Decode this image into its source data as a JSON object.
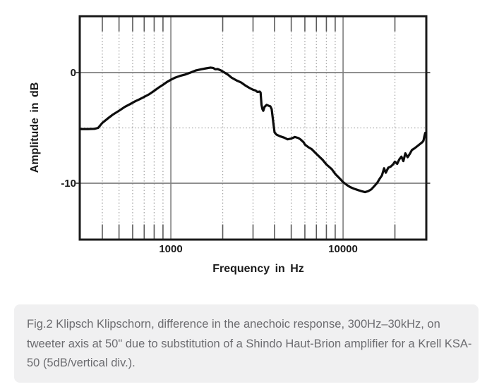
{
  "figure": {
    "y_axis_title": "Amplitude in dB",
    "x_axis_title": "Frequency in Hz",
    "y_tick_labels": [
      "0",
      "-10"
    ],
    "x_tick_labels": [
      "1000",
      "10000"
    ]
  },
  "caption": {
    "lines": [
      "Fig.2 Klipsch Klipschorn, difference in the anechoic response, 300Hz–30kHz, on",
      "tweeter axis at 50\" due to substitution of a Shindo Haut-Brion amplifier for a Krell KSA-",
      "50 (5dB/vertical div.)."
    ],
    "background": "#f0f0f1",
    "text_color": "#6c6c70"
  },
  "chart_data": {
    "type": "line",
    "title": "",
    "xlabel": "Frequency in Hz",
    "ylabel": "Amplitude in dB",
    "x_scale": "log",
    "xlim": [
      300,
      30000
    ],
    "ylim": [
      -15,
      5
    ],
    "grid": true,
    "legend": false,
    "db_per_division": 5,
    "x_major_gridlines": [
      1000,
      10000
    ],
    "x_minor_gridlines": [
      400,
      500,
      600,
      700,
      800,
      900,
      2000,
      3000,
      4000,
      5000,
      6000,
      7000,
      8000,
      9000,
      20000
    ],
    "y_major_gridlines": [
      0,
      -10
    ],
    "y_minor_gridlines": [
      -5
    ],
    "colors": {
      "curve": "#0d0d0d",
      "frame": "#1a1a1a",
      "major_grid": "#7f7f7f",
      "minor_grid": "#a8a8a8",
      "tick": "#5a5a5a"
    },
    "series": [
      {
        "name": "Anechoic response difference: Shindo Haut-Brion vs Krell KSA-50",
        "points": [
          [
            300,
            -5.1
          ],
          [
            330,
            -5.1
          ],
          [
            360,
            -5.08
          ],
          [
            378,
            -5.0
          ],
          [
            400,
            -4.55
          ],
          [
            430,
            -4.15
          ],
          [
            460,
            -3.8
          ],
          [
            500,
            -3.45
          ],
          [
            540,
            -3.1
          ],
          [
            580,
            -2.85
          ],
          [
            620,
            -2.6
          ],
          [
            660,
            -2.4
          ],
          [
            700,
            -2.2
          ],
          [
            750,
            -1.95
          ],
          [
            800,
            -1.65
          ],
          [
            850,
            -1.35
          ],
          [
            900,
            -1.1
          ],
          [
            950,
            -0.85
          ],
          [
            1000,
            -0.65
          ],
          [
            1060,
            -0.45
          ],
          [
            1130,
            -0.3
          ],
          [
            1200,
            -0.2
          ],
          [
            1300,
            0.0
          ],
          [
            1400,
            0.2
          ],
          [
            1500,
            0.3
          ],
          [
            1600,
            0.38
          ],
          [
            1700,
            0.45
          ],
          [
            1760,
            0.42
          ],
          [
            1810,
            0.3
          ],
          [
            1870,
            0.32
          ],
          [
            1950,
            0.2
          ],
          [
            2050,
            0.0
          ],
          [
            2150,
            -0.2
          ],
          [
            2250,
            -0.45
          ],
          [
            2400,
            -0.7
          ],
          [
            2560,
            -0.9
          ],
          [
            2700,
            -1.15
          ],
          [
            2870,
            -1.4
          ],
          [
            3000,
            -1.55
          ],
          [
            3100,
            -1.62
          ],
          [
            3180,
            -1.75
          ],
          [
            3280,
            -1.72
          ],
          [
            3320,
            -1.8
          ],
          [
            3360,
            -2.9
          ],
          [
            3400,
            -3.3
          ],
          [
            3440,
            -3.45
          ],
          [
            3500,
            -3.1
          ],
          [
            3600,
            -2.92
          ],
          [
            3700,
            -3.0
          ],
          [
            3780,
            -3.05
          ],
          [
            3850,
            -3.3
          ],
          [
            3920,
            -4.3
          ],
          [
            4000,
            -5.4
          ],
          [
            4100,
            -5.6
          ],
          [
            4300,
            -5.75
          ],
          [
            4550,
            -5.88
          ],
          [
            4760,
            -6.03
          ],
          [
            5000,
            -5.97
          ],
          [
            5250,
            -5.82
          ],
          [
            5500,
            -5.92
          ],
          [
            5650,
            -6.03
          ],
          [
            5900,
            -6.3
          ],
          [
            6000,
            -6.5
          ],
          [
            6300,
            -6.75
          ],
          [
            6570,
            -6.92
          ],
          [
            7000,
            -7.35
          ],
          [
            7600,
            -7.88
          ],
          [
            8000,
            -8.3
          ],
          [
            8600,
            -8.73
          ],
          [
            9000,
            -9.15
          ],
          [
            9560,
            -9.57
          ],
          [
            10000,
            -9.9
          ],
          [
            10500,
            -10.15
          ],
          [
            11000,
            -10.35
          ],
          [
            11600,
            -10.5
          ],
          [
            12200,
            -10.62
          ],
          [
            12800,
            -10.72
          ],
          [
            13400,
            -10.8
          ],
          [
            14000,
            -10.72
          ],
          [
            14600,
            -10.55
          ],
          [
            15200,
            -10.25
          ],
          [
            15800,
            -9.95
          ],
          [
            16300,
            -9.6
          ],
          [
            16800,
            -9.3
          ],
          [
            17300,
            -8.65
          ],
          [
            17700,
            -9.05
          ],
          [
            18300,
            -8.6
          ],
          [
            18900,
            -8.5
          ],
          [
            19500,
            -8.3
          ],
          [
            20000,
            -8.05
          ],
          [
            20600,
            -8.25
          ],
          [
            21200,
            -7.85
          ],
          [
            21800,
            -7.6
          ],
          [
            22400,
            -8.0
          ],
          [
            23000,
            -7.3
          ],
          [
            23700,
            -7.65
          ],
          [
            24400,
            -7.35
          ],
          [
            25100,
            -7.0
          ],
          [
            26000,
            -6.85
          ],
          [
            27000,
            -6.65
          ],
          [
            28000,
            -6.45
          ],
          [
            28800,
            -6.3
          ],
          [
            29300,
            -6.15
          ],
          [
            29600,
            -5.8
          ],
          [
            30000,
            -5.45
          ]
        ]
      }
    ]
  }
}
